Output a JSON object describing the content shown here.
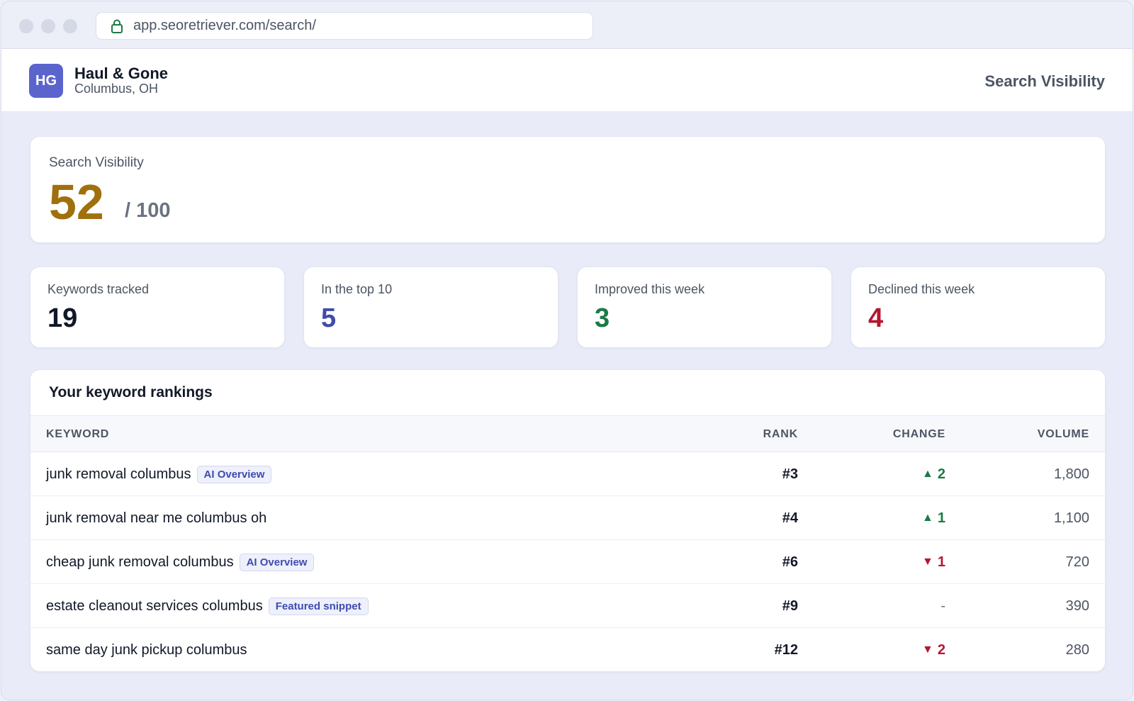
{
  "browser": {
    "url": "app.seoretriever.com/search/"
  },
  "header": {
    "avatar_initials": "HG",
    "business_name": "Haul & Gone",
    "location": "Columbus, OH",
    "page_title": "Search Visibility"
  },
  "visibility": {
    "label": "Search Visibility",
    "score": "52",
    "max": "/ 100"
  },
  "stats": [
    {
      "label": "Keywords tracked",
      "value": "19",
      "color": "#111827"
    },
    {
      "label": "In the top 10",
      "value": "5",
      "color": "#3f4bb0"
    },
    {
      "label": "Improved this week",
      "value": "3",
      "color": "#1c7a45"
    },
    {
      "label": "Declined this week",
      "value": "4",
      "color": "#b3172f"
    }
  ],
  "rankings": {
    "title": "Your keyword rankings",
    "columns": {
      "keyword": "KEYWORD",
      "rank": "RANK",
      "change": "CHANGE",
      "volume": "VOLUME"
    },
    "rows": [
      {
        "keyword": "junk removal columbus",
        "tag": "AI Overview",
        "rank": "#3",
        "change_dir": "up",
        "change": "2",
        "volume": "1,800"
      },
      {
        "keyword": "junk removal near me columbus oh",
        "tag": "",
        "rank": "#4",
        "change_dir": "up",
        "change": "1",
        "volume": "1,100"
      },
      {
        "keyword": "cheap junk removal columbus",
        "tag": "AI Overview",
        "rank": "#6",
        "change_dir": "down",
        "change": "1",
        "volume": "720"
      },
      {
        "keyword": "estate cleanout services columbus",
        "tag": "Featured snippet",
        "rank": "#9",
        "change_dir": "none",
        "change": "-",
        "volume": "390"
      },
      {
        "keyword": "same day junk pickup columbus",
        "tag": "",
        "rank": "#12",
        "change_dir": "down",
        "change": "2",
        "volume": "280"
      }
    ]
  },
  "colors": {
    "up": "#1c7a45",
    "down": "#b3172f",
    "neutral": "#6b7280",
    "score": "#a0700d",
    "accent": "#5b64cc"
  }
}
